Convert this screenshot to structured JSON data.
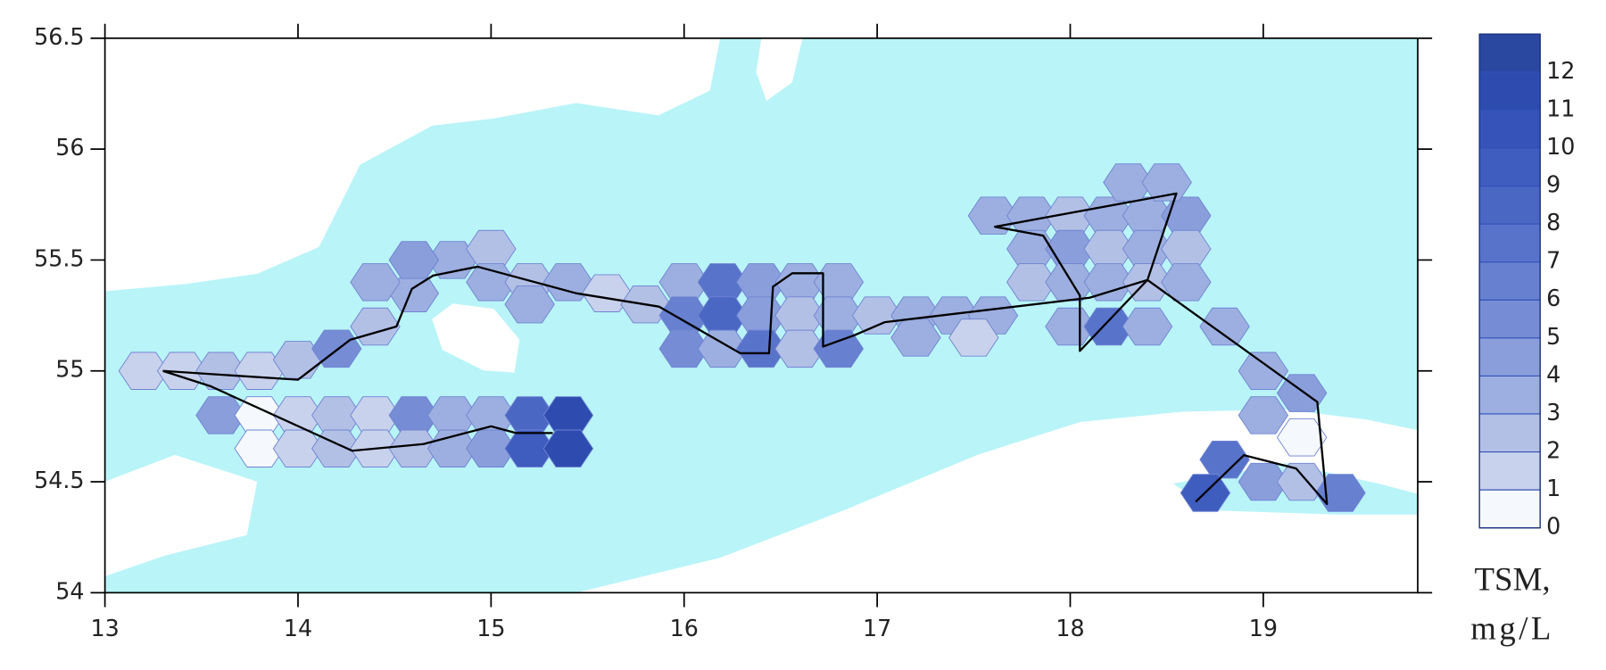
{
  "chart_data": {
    "type": "contour-map",
    "xlim": [
      13,
      19.8
    ],
    "ylim": [
      54,
      56.5
    ],
    "xticks": [
      13,
      14,
      15,
      16,
      17,
      18,
      19
    ],
    "yticks": [
      54,
      54.5,
      55,
      55.5,
      56,
      56.5
    ],
    "clim": [
      0,
      13
    ],
    "cticks": [
      0,
      1,
      2,
      3,
      4,
      5,
      6,
      7,
      8,
      9,
      10,
      11,
      12
    ],
    "colors": [
      "#f5f8fc",
      "#c9d2ec",
      "#b3c0e6",
      "#9dafe0",
      "#899edb",
      "#768dd5",
      "#6780d0",
      "#5873ca",
      "#4b67c4",
      "#3f5cbf",
      "#3553b8",
      "#2e4cb0",
      "#2a48a0"
    ],
    "colorbar_label": [
      "TSM,",
      "mg/L"
    ],
    "samples": {
      "lon": [
        13.2,
        13.4,
        13.6,
        13.8,
        14.0,
        13.6,
        13.8,
        14.0,
        14.2,
        14.4,
        14.6,
        14.8,
        15.0,
        15.2,
        15.4,
        13.8,
        14.0,
        14.2,
        14.4,
        14.6,
        14.8,
        15.0,
        15.2,
        15.4,
        14.2,
        14.4,
        14.6,
        14.8,
        14.4,
        14.6,
        15.0,
        15.0,
        15.2,
        15.2,
        15.4,
        15.6,
        15.8,
        16.0,
        16.2,
        16.4,
        16.6,
        16.8,
        16.0,
        16.2,
        16.4,
        16.6,
        16.8,
        16.0,
        16.2,
        16.4,
        16.6,
        16.8,
        17.0,
        17.2,
        17.4,
        17.6,
        17.2,
        17.5,
        17.6,
        17.8,
        18.0,
        18.2,
        18.4,
        18.6,
        18.3,
        18.5,
        17.8,
        18.0,
        18.2,
        18.4,
        18.6,
        17.8,
        18.0,
        18.2,
        18.4,
        18.6,
        18.0,
        18.2,
        18.4,
        18.8,
        19.0,
        19.2,
        19.0,
        19.2,
        18.8,
        19.0,
        19.2,
        19.4,
        18.7
      ],
      "lat": [
        55.0,
        55.0,
        55.0,
        55.0,
        55.05,
        54.8,
        54.8,
        54.8,
        54.8,
        54.8,
        54.8,
        54.8,
        54.8,
        54.8,
        54.8,
        54.65,
        54.65,
        54.65,
        54.65,
        54.65,
        54.65,
        54.65,
        54.65,
        54.65,
        55.1,
        55.2,
        55.35,
        55.5,
        55.4,
        55.5,
        55.55,
        55.4,
        55.4,
        55.3,
        55.4,
        55.35,
        55.3,
        55.4,
        55.4,
        55.4,
        55.4,
        55.4,
        55.25,
        55.25,
        55.25,
        55.25,
        55.25,
        55.1,
        55.1,
        55.1,
        55.1,
        55.1,
        55.25,
        55.25,
        55.25,
        55.25,
        55.15,
        55.15,
        55.7,
        55.7,
        55.7,
        55.7,
        55.7,
        55.7,
        55.85,
        55.85,
        55.55,
        55.55,
        55.55,
        55.55,
        55.55,
        55.4,
        55.4,
        55.4,
        55.4,
        55.4,
        55.2,
        55.2,
        55.2,
        55.2,
        55.0,
        54.9,
        54.8,
        54.7,
        54.6,
        54.5,
        54.5,
        54.45,
        54.45
      ],
      "values": [
        1,
        1,
        2,
        1,
        2,
        4,
        0,
        1,
        2,
        1,
        5,
        3,
        3,
        8,
        11,
        0,
        1,
        2,
        1,
        2,
        3,
        4,
        9,
        11,
        5,
        2,
        3,
        3,
        3,
        4,
        2,
        3,
        2,
        3,
        3,
        1,
        2,
        3,
        7,
        4,
        3,
        3,
        6,
        8,
        4,
        2,
        3,
        5,
        3,
        7,
        2,
        6,
        2,
        3,
        3,
        3,
        3,
        1,
        3,
        3,
        2,
        3,
        3,
        4,
        3,
        3,
        3,
        4,
        2,
        3,
        2,
        2,
        3,
        3,
        2,
        3,
        3,
        7,
        3,
        3,
        3,
        4,
        3,
        0,
        7,
        4,
        2,
        6,
        9
      ]
    },
    "track": {
      "lon": [
        13.3,
        14.0,
        14.27,
        14.51,
        14.59,
        14.7,
        14.93,
        15.44,
        15.87,
        16.29,
        16.44,
        16.46,
        16.56,
        16.72,
        16.72,
        16.88,
        17.04,
        18.1,
        18.4,
        18.55,
        17.61,
        17.86,
        18.05,
        18.05,
        18.4,
        19.28,
        19.33,
        19.17,
        18.9,
        18.65,
        null,
        13.3,
        13.55,
        14.28,
        14.65,
        15.0,
        15.13,
        15.32
      ],
      "lat": [
        55.0,
        54.96,
        55.14,
        55.2,
        55.37,
        55.43,
        55.47,
        55.35,
        55.29,
        55.08,
        55.08,
        55.38,
        55.44,
        55.44,
        55.11,
        55.16,
        55.22,
        55.33,
        55.41,
        55.8,
        55.65,
        55.61,
        55.34,
        55.09,
        55.41,
        54.86,
        54.4,
        54.56,
        54.62,
        54.41,
        null,
        55.0,
        54.93,
        54.64,
        54.67,
        54.75,
        54.72,
        54.72
      ]
    }
  }
}
